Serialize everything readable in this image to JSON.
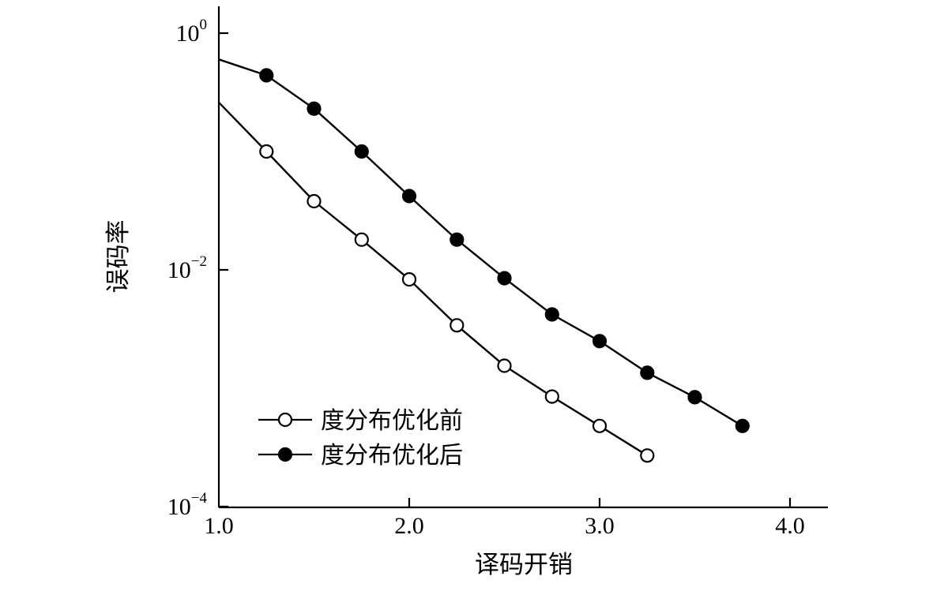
{
  "chart_data": {
    "type": "line",
    "xlabel": "译码开销",
    "ylabel": "误码率",
    "xlim": [
      1.0,
      4.2
    ],
    "ylim": [
      0.0001,
      1
    ],
    "y_scale": "log",
    "grid": false,
    "legend_position": "bottom-left",
    "x_ticks": [
      {
        "value": 1.0,
        "label": "1.0"
      },
      {
        "value": 2.0,
        "label": "2.0"
      },
      {
        "value": 3.0,
        "label": "3.0"
      },
      {
        "value": 4.0,
        "label": "4.0"
      }
    ],
    "y_ticks": [
      {
        "value": 1,
        "base": "10",
        "exp": "0"
      },
      {
        "value": 0.01,
        "base": "10",
        "exp": "−2"
      },
      {
        "value": 0.0001,
        "base": "10",
        "exp": "−4"
      }
    ],
    "series": [
      {
        "name": "度分布优化前",
        "marker": "open-circle",
        "color": "#000000",
        "x": [
          1.0,
          1.25,
          1.5,
          1.75,
          2.0,
          2.25,
          2.5,
          2.75,
          3.0,
          3.25
        ],
        "y": [
          0.26,
          0.1,
          0.038,
          0.018,
          0.0083,
          0.0034,
          0.00155,
          0.00085,
          0.00048,
          0.00027
        ],
        "marker_from_index": 1
      },
      {
        "name": "度分布优化后",
        "marker": "filled-circle",
        "color": "#000000",
        "x": [
          1.0,
          1.25,
          1.5,
          1.75,
          2.0,
          2.25,
          2.5,
          2.75,
          3.0,
          3.25,
          3.5,
          3.75
        ],
        "y": [
          0.6,
          0.44,
          0.23,
          0.1,
          0.042,
          0.018,
          0.0085,
          0.0042,
          0.0025,
          0.00135,
          0.00084,
          0.00048
        ],
        "marker_from_index": 1
      }
    ]
  }
}
